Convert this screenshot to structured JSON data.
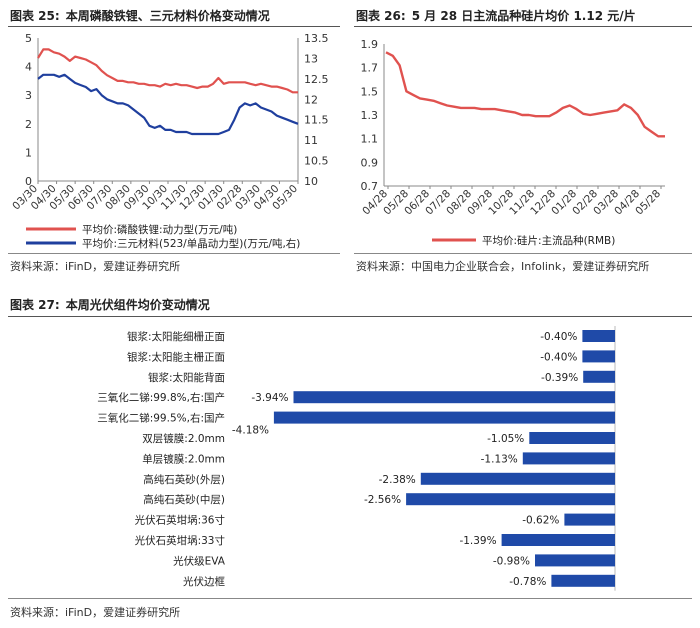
{
  "figures": [
    {
      "label": "图表 25:",
      "title": "本周磷酸铁锂、三元材料价格变动情况"
    },
    {
      "label": "图表 26:",
      "title": "5 月 28 日主流品种硅片均价 1.12 元/片"
    },
    {
      "label": "图表 27:",
      "title": "本周光伏组件均价变动情况"
    }
  ],
  "sources": [
    "资料来源：iFinD，爱建证券研究所",
    "资料来源：中国电力企业联合会，Infolink，爱建证券研究所",
    "资料来源：iFinD，爱建证券研究所"
  ],
  "colors": {
    "red": "#e0524f",
    "blue": "#1f3f9e",
    "bar": "#1f4aa8"
  },
  "chart_data": [
    {
      "id": "fig25",
      "type": "line",
      "title": "本周磷酸铁锂、三元材料价格变动情况",
      "x_labels": [
        "03/30",
        "04/30",
        "05/30",
        "06/30",
        "07/30",
        "08/30",
        "09/30",
        "10/30",
        "11/30",
        "12/30",
        "01/30",
        "02/28",
        "03/30",
        "04/30",
        "05/30"
      ],
      "y_left": {
        "min": 0,
        "max": 5,
        "ticks": [
          0,
          1,
          2,
          3,
          4,
          5
        ]
      },
      "y_right": {
        "min": 10,
        "max": 13.5,
        "ticks": [
          10,
          10.5,
          11,
          11.5,
          12,
          12.5,
          13,
          13.5
        ]
      },
      "series": [
        {
          "name": "平均价:磷酸铁锂:动力型(万元/吨)",
          "axis": "left",
          "color": "#e0524f",
          "values": [
            4.3,
            4.6,
            4.6,
            4.5,
            4.45,
            4.35,
            4.2,
            4.35,
            4.3,
            4.25,
            4.15,
            4.05,
            3.85,
            3.7,
            3.6,
            3.5,
            3.5,
            3.45,
            3.45,
            3.4,
            3.4,
            3.35,
            3.35,
            3.3,
            3.4,
            3.35,
            3.4,
            3.35,
            3.35,
            3.3,
            3.25,
            3.3,
            3.3,
            3.4,
            3.6,
            3.4,
            3.45,
            3.45,
            3.45,
            3.45,
            3.4,
            3.35,
            3.4,
            3.35,
            3.3,
            3.3,
            3.25,
            3.2,
            3.1,
            3.1
          ]
        },
        {
          "name": "平均价:三元材料(523/单晶动力型)(万元/吨,右)",
          "axis": "right",
          "color": "#1f3f9e",
          "values": [
            12.5,
            12.6,
            12.6,
            12.6,
            12.55,
            12.6,
            12.5,
            12.4,
            12.35,
            12.3,
            12.2,
            12.25,
            12.1,
            12.0,
            11.95,
            11.9,
            11.9,
            11.85,
            11.75,
            11.65,
            11.55,
            11.35,
            11.3,
            11.35,
            11.25,
            11.25,
            11.2,
            11.2,
            11.2,
            11.15,
            11.15,
            11.15,
            11.15,
            11.15,
            11.15,
            11.2,
            11.25,
            11.5,
            11.8,
            11.9,
            11.85,
            11.9,
            11.8,
            11.75,
            11.7,
            11.6,
            11.55,
            11.5,
            11.45,
            11.4
          ]
        }
      ]
    },
    {
      "id": "fig26",
      "type": "line",
      "title": "5 月 28 日主流品种硅片均价 1.12 元/片",
      "x_labels": [
        "04/28",
        "05/28",
        "06/28",
        "07/28",
        "08/28",
        "09/28",
        "10/28",
        "11/28",
        "12/28",
        "01/28",
        "02/28",
        "03/28",
        "04/28",
        "05/28"
      ],
      "y_left": {
        "min": 0.7,
        "max": 1.9,
        "ticks": [
          0.7,
          0.9,
          1.1,
          1.3,
          1.5,
          1.7,
          1.9
        ]
      },
      "series": [
        {
          "name": "平均价:硅片:主流品种(RMB)",
          "axis": "left",
          "color": "#e0524f",
          "values": [
            1.83,
            1.8,
            1.72,
            1.5,
            1.47,
            1.44,
            1.43,
            1.42,
            1.4,
            1.38,
            1.37,
            1.36,
            1.36,
            1.36,
            1.35,
            1.35,
            1.35,
            1.34,
            1.33,
            1.32,
            1.3,
            1.3,
            1.29,
            1.29,
            1.29,
            1.32,
            1.36,
            1.38,
            1.35,
            1.31,
            1.3,
            1.31,
            1.32,
            1.33,
            1.34,
            1.39,
            1.36,
            1.3,
            1.2,
            1.16,
            1.12,
            1.12
          ]
        }
      ]
    },
    {
      "id": "fig27",
      "type": "bar",
      "orientation": "horizontal",
      "title": "本周光伏组件均价变动情况",
      "unit": "%",
      "categories": [
        "银浆:太阳能细栅正面",
        "银浆:太阳能主栅正面",
        "银浆:太阳能背面",
        "三氧化二锑:99.8%,右:国产",
        "三氧化二锑:99.5%,右:国产",
        "双层镀膜:2.0mm",
        "单层镀膜:2.0mm",
        "高纯石英砂(外层)",
        "高纯石英砂(中层)",
        "光伏石英坩埚:36寸",
        "光伏石英坩埚:33寸",
        "光伏级EVA",
        "光伏边框"
      ],
      "values": [
        -0.4,
        -0.4,
        -0.39,
        -3.94,
        -4.18,
        -1.05,
        -1.13,
        -2.38,
        -2.56,
        -0.62,
        -1.39,
        -0.98,
        -0.78
      ],
      "value_labels": [
        "-0.40%",
        "-0.40%",
        "-0.39%",
        "-3.94%",
        "-4.18%",
        "-1.05%",
        "-1.13%",
        "-2.38%",
        "-2.56%",
        "-0.62%",
        "-1.39%",
        "-0.98%",
        "-0.78%"
      ]
    }
  ]
}
